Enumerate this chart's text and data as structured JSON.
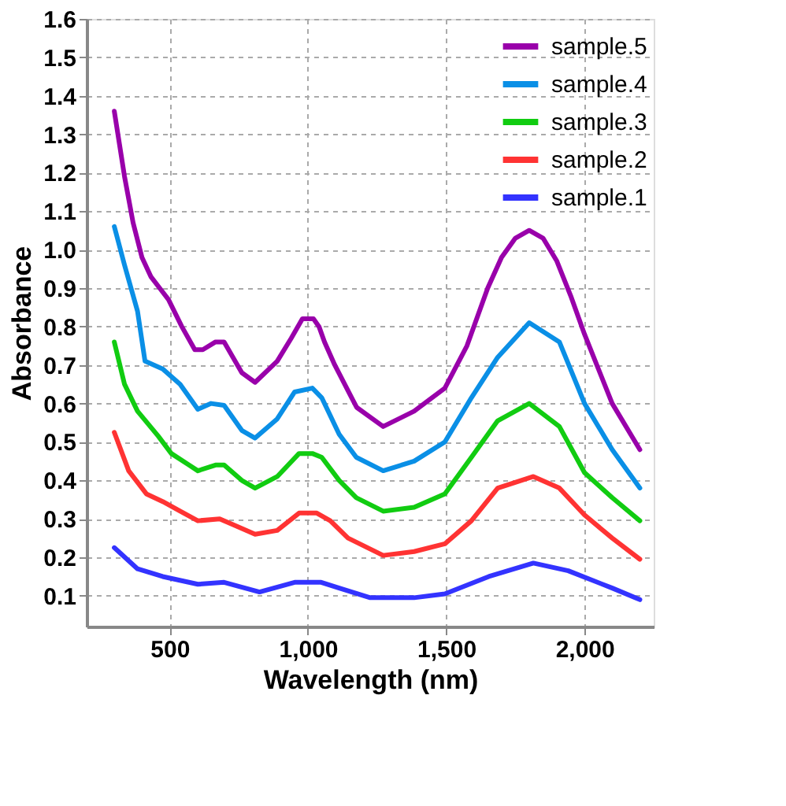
{
  "chart_data": {
    "type": "line",
    "xlabel": "Wavelength (nm)",
    "ylabel": "Absorbance",
    "xlim": [
      200,
      2250
    ],
    "ylim": [
      0.02,
      1.6
    ],
    "xticks": [
      {
        "value": 500,
        "label": "500"
      },
      {
        "value": 1000,
        "label": "1,000"
      },
      {
        "value": 1500,
        "label": "1,500"
      },
      {
        "value": 2000,
        "label": "2,000"
      }
    ],
    "yticks": [
      {
        "value": 0.1,
        "label": "0.1"
      },
      {
        "value": 0.2,
        "label": "0.2"
      },
      {
        "value": 0.3,
        "label": "0.3"
      },
      {
        "value": 0.4,
        "label": "0.4"
      },
      {
        "value": 0.5,
        "label": "0.5"
      },
      {
        "value": 0.6,
        "label": "0.6"
      },
      {
        "value": 0.7,
        "label": "0.7"
      },
      {
        "value": 0.8,
        "label": "0.8"
      },
      {
        "value": 0.9,
        "label": "0.9"
      },
      {
        "value": 1.0,
        "label": "1.0"
      },
      {
        "value": 1.1,
        "label": "1.1"
      },
      {
        "value": 1.2,
        "label": "1.2"
      },
      {
        "value": 1.3,
        "label": "1.3"
      },
      {
        "value": 1.4,
        "label": "1.4"
      },
      {
        "value": 1.5,
        "label": "1.5"
      },
      {
        "value": 1.6,
        "label": "1.6"
      }
    ],
    "grid": true,
    "legend": "top right",
    "line_style": "solid",
    "marker": "none",
    "series": [
      {
        "name": "sample.5",
        "color": "#9900aa",
        "x": [
          300,
          337,
          368,
          400,
          432,
          464,
          496,
          544,
          591,
          620,
          666,
          697,
          761,
          809,
          889,
          940,
          980,
          1020,
          1040,
          1060,
          1097,
          1176,
          1272,
          1384,
          1495,
          1575,
          1650,
          1700,
          1750,
          1800,
          1850,
          1900,
          1950,
          2000,
          2100,
          2200
        ],
        "values": [
          1.36,
          1.19,
          1.07,
          0.98,
          0.93,
          0.9,
          0.87,
          0.8,
          0.74,
          0.74,
          0.76,
          0.76,
          0.68,
          0.655,
          0.71,
          0.77,
          0.82,
          0.82,
          0.8,
          0.76,
          0.7,
          0.59,
          0.54,
          0.58,
          0.64,
          0.75,
          0.9,
          0.98,
          1.03,
          1.05,
          1.03,
          0.97,
          0.88,
          0.78,
          0.6,
          0.48
        ]
      },
      {
        "name": "sample.4",
        "color": "#0a8fe6",
        "x": [
          300,
          337,
          384,
          411,
          475,
          538,
          602,
          650,
          697,
          761,
          809,
          889,
          952,
          1016,
          1050,
          1113,
          1175,
          1272,
          1384,
          1495,
          1591,
          1686,
          1800,
          1909,
          2000,
          2100,
          2200
        ],
        "values": [
          1.06,
          0.96,
          0.84,
          0.71,
          0.69,
          0.65,
          0.585,
          0.6,
          0.595,
          0.53,
          0.51,
          0.56,
          0.63,
          0.64,
          0.615,
          0.52,
          0.46,
          0.425,
          0.45,
          0.5,
          0.615,
          0.72,
          0.81,
          0.76,
          0.6,
          0.48,
          0.38
        ]
      },
      {
        "name": "sample.3",
        "color": "#11cc11",
        "x": [
          300,
          337,
          384,
          459,
          506,
          570,
          602,
          666,
          697,
          761,
          809,
          889,
          968,
          1016,
          1050,
          1113,
          1175,
          1272,
          1384,
          1495,
          1591,
          1686,
          1800,
          1909,
          2000,
          2100,
          2200
        ],
        "values": [
          0.76,
          0.65,
          0.58,
          0.515,
          0.47,
          0.44,
          0.425,
          0.44,
          0.44,
          0.4,
          0.38,
          0.41,
          0.47,
          0.47,
          0.46,
          0.4,
          0.355,
          0.32,
          0.33,
          0.365,
          0.46,
          0.555,
          0.6,
          0.54,
          0.42,
          0.355,
          0.295
        ]
      },
      {
        "name": "sample.2",
        "color": "#ff3333",
        "x": [
          300,
          352,
          416,
          475,
          538,
          602,
          681,
          729,
          809,
          889,
          968,
          1032,
          1081,
          1145,
          1272,
          1384,
          1495,
          1591,
          1686,
          1815,
          1909,
          2000,
          2100,
          2200
        ],
        "values": [
          0.525,
          0.425,
          0.365,
          0.345,
          0.32,
          0.295,
          0.3,
          0.285,
          0.26,
          0.27,
          0.315,
          0.315,
          0.295,
          0.25,
          0.205,
          0.215,
          0.235,
          0.295,
          0.38,
          0.41,
          0.38,
          0.31,
          0.25,
          0.195
        ]
      },
      {
        "name": "sample.1",
        "color": "#3333ff",
        "x": [
          300,
          384,
          475,
          602,
          697,
          825,
          952,
          1048,
          1113,
          1225,
          1384,
          1495,
          1654,
          1815,
          1941,
          2100,
          2200
        ],
        "values": [
          0.225,
          0.17,
          0.15,
          0.13,
          0.135,
          0.11,
          0.135,
          0.135,
          0.12,
          0.095,
          0.095,
          0.105,
          0.15,
          0.185,
          0.165,
          0.12,
          0.09
        ]
      }
    ]
  }
}
